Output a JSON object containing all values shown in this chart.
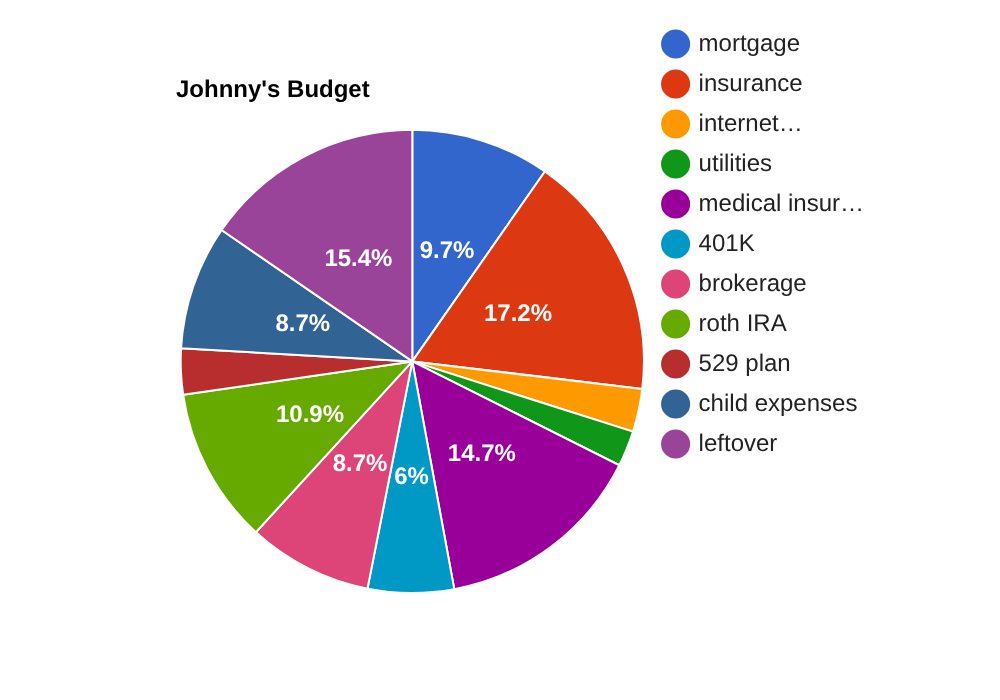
{
  "chart_data": {
    "type": "pie",
    "title": "Johnny's Budget",
    "categories": [
      "mortgage",
      "insurance",
      "internet…",
      "utilities",
      "medical insur…",
      "401K",
      "brokerage",
      "roth IRA",
      "529 plan",
      "child expenses",
      "leftover"
    ],
    "values": [
      9.7,
      17.2,
      3.0,
      2.5,
      14.7,
      6,
      8.7,
      10.9,
      3.2,
      8.7,
      15.4
    ],
    "colors": [
      "#3366cc",
      "#dc3912",
      "#ff9900",
      "#109618",
      "#990099",
      "#0099c6",
      "#dd4477",
      "#66aa00",
      "#b82e2e",
      "#316395",
      "#994499"
    ],
    "value_labels": [
      "9.7%",
      "17.2%",
      null,
      null,
      "14.7%",
      "6%",
      "8.7%",
      "10.9%",
      null,
      "8.7%",
      "15.4%"
    ],
    "legend": "right"
  }
}
